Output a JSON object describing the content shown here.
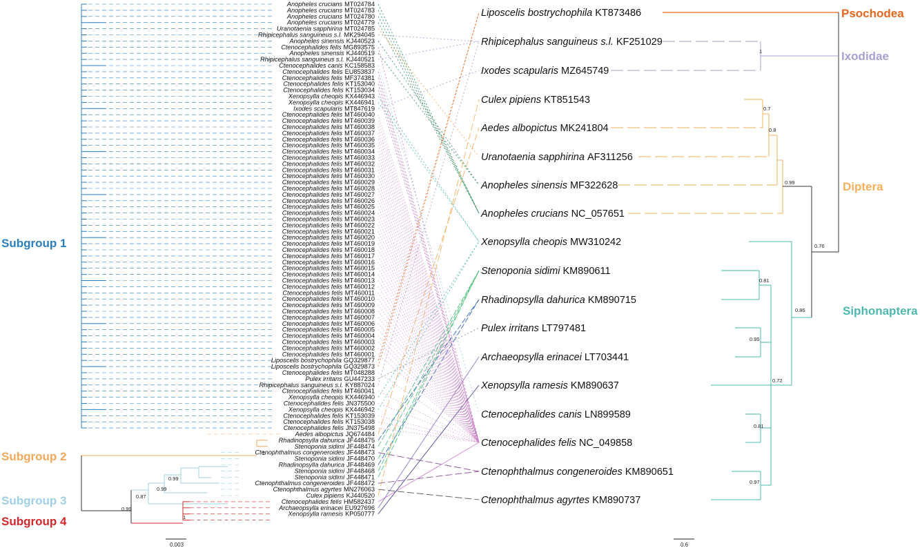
{
  "colors": {
    "subgroup1": "#2a7fc0",
    "subgroup2": "#f5a85a",
    "subgroup3": "#9fd0e6",
    "subgroup4": "#d7262b",
    "psochodea": "#e8661e",
    "ixodidae": "#a79fd0",
    "diptera": "#f5b05c",
    "siphonaptera": "#4db8ae"
  },
  "subgroups": [
    {
      "label": "Subgroup 1",
      "color": "#2a7fc0"
    },
    {
      "label": "Subgroup 2",
      "color": "#f5a85a"
    },
    {
      "label": "Subgroup 3",
      "color": "#9fd0e6"
    },
    {
      "label": "Subgroup 4",
      "color": "#d7262b"
    }
  ],
  "clades": [
    {
      "label": "Psochodea",
      "color": "#e8661e"
    },
    {
      "label": "Ixodidae",
      "color": "#a79fd0"
    },
    {
      "label": "Diptera",
      "color": "#f5b05c"
    },
    {
      "label": "Siphonaptera",
      "color": "#4db8ae"
    }
  ],
  "left_tips": [
    {
      "species": "Anopheles crucians",
      "accession": "MT024784"
    },
    {
      "species": "Anopheles crucians",
      "accession": "MT024783"
    },
    {
      "species": "Anopheles crucians",
      "accession": "MT024780"
    },
    {
      "species": "Anopheles crucians",
      "accession": "MT024779"
    },
    {
      "species": "Uranotaenia sapphirina",
      "accession": "MT024785"
    },
    {
      "species": "Rhipicephalus sanguineus s.l.",
      "accession": "MK294045"
    },
    {
      "species": "Anopheles sinensis",
      "accession": "KJ440523"
    },
    {
      "species": "Ctenocephalides felis",
      "accession": "MG893575"
    },
    {
      "species": "Anopheles sinensis",
      "accession": "KJ440519"
    },
    {
      "species": "Rhipicephalus sanguineus s.l.",
      "accession": "KJ440521"
    },
    {
      "species": "Ctenocephalides canis",
      "accession": "KC158583"
    },
    {
      "species": "Ctenocephalides felis",
      "accession": "EU853837"
    },
    {
      "species": "Ctenocephalides felis",
      "accession": "MF374381"
    },
    {
      "species": "Ctenocephalides felis",
      "accession": "KT153040"
    },
    {
      "species": "Ctenocephalides felis",
      "accession": "KT153034"
    },
    {
      "species": "Xenopsylla cheopis",
      "accession": "KX446943"
    },
    {
      "species": "Xenopsylla cheopis",
      "accession": "KX446941"
    },
    {
      "species": "Ixodes scapularis",
      "accession": "MT847619"
    },
    {
      "species": "Ctenocephalides felis",
      "accession": "MT460040"
    },
    {
      "species": "Ctenocephalides felis",
      "accession": "MT460039"
    },
    {
      "species": "Ctenocephalides felis",
      "accession": "MT460038"
    },
    {
      "species": "Ctenocephalides felis",
      "accession": "MT460037"
    },
    {
      "species": "Ctenocephalides felis",
      "accession": "MT460036"
    },
    {
      "species": "Ctenocephalides felis",
      "accession": "MT460035"
    },
    {
      "species": "Ctenocephalides felis",
      "accession": "MT460034"
    },
    {
      "species": "Ctenocephalides felis",
      "accession": "MT460033"
    },
    {
      "species": "Ctenocephalides felis",
      "accession": "MT460032"
    },
    {
      "species": "Ctenocephalides felis",
      "accession": "MT460031"
    },
    {
      "species": "Ctenocephalides felis",
      "accession": "MT460030"
    },
    {
      "species": "Ctenocephalides felis",
      "accession": "MT460029"
    },
    {
      "species": "Ctenocephalides felis",
      "accession": "MT460028"
    },
    {
      "species": "Ctenocephalides felis",
      "accession": "MT460027"
    },
    {
      "species": "Ctenocephalides felis",
      "accession": "MT460026"
    },
    {
      "species": "Ctenocephalides felis",
      "accession": "MT460025"
    },
    {
      "species": "Ctenocephalides felis",
      "accession": "MT460024"
    },
    {
      "species": "Ctenocephalides felis",
      "accession": "MT460023"
    },
    {
      "species": "Ctenocephalides felis",
      "accession": "MT460022"
    },
    {
      "species": "Ctenocephalides felis",
      "accession": "MT460021"
    },
    {
      "species": "Ctenocephalides felis",
      "accession": "MT460020"
    },
    {
      "species": "Ctenocephalides felis",
      "accession": "MT460019"
    },
    {
      "species": "Ctenocephalides felis",
      "accession": "MT460018"
    },
    {
      "species": "Ctenocephalides felis",
      "accession": "MT460017"
    },
    {
      "species": "Ctenocephalides felis",
      "accession": "MT460016"
    },
    {
      "species": "Ctenocephalides felis",
      "accession": "MT460015"
    },
    {
      "species": "Ctenocephalides felis",
      "accession": "MT460014"
    },
    {
      "species": "Ctenocephalides felis",
      "accession": "MT460013"
    },
    {
      "species": "Ctenocephalides felis",
      "accession": "MT460012"
    },
    {
      "species": "Ctenocephalides felis",
      "accession": "MT460011"
    },
    {
      "species": "Ctenocephalides felis",
      "accession": "MT460010"
    },
    {
      "species": "Ctenocephalides felis",
      "accession": "MT460009"
    },
    {
      "species": "Ctenocephalides felis",
      "accession": "MT460008"
    },
    {
      "species": "Ctenocephalides felis",
      "accession": "MT460007"
    },
    {
      "species": "Ctenocephalides felis",
      "accession": "MT460006"
    },
    {
      "species": "Ctenocephalides felis",
      "accession": "MT460005"
    },
    {
      "species": "Ctenocephalides felis",
      "accession": "MT460004"
    },
    {
      "species": "Ctenocephalides felis",
      "accession": "MT460003"
    },
    {
      "species": "Ctenocephalides felis",
      "accession": "MT460002"
    },
    {
      "species": "Ctenocephalides felis",
      "accession": "MT460001"
    },
    {
      "species": "Liposcelis bostrychophila",
      "accession": "GQ329877"
    },
    {
      "species": "Liposcelis bostrychophila",
      "accession": "GQ329873"
    },
    {
      "species": "Ctenocephalides felis",
      "accession": "MT048288"
    },
    {
      "species": "Pulex irritans",
      "accession": "GU447233"
    },
    {
      "species": "Rhipicephalus sanguineus s.l.",
      "accession": "KY887024"
    },
    {
      "species": "Ctenocephalides felis",
      "accession": "MT460041"
    },
    {
      "species": "Xenopsylla cheopis",
      "accession": "KX446940"
    },
    {
      "species": "Ctenocephalides felis",
      "accession": "JN375500"
    },
    {
      "species": "Xenopsylla cheopis",
      "accession": "KX446942"
    },
    {
      "species": "Ctenocephalides felis",
      "accession": "KT153039"
    },
    {
      "species": "Ctenocephalides felis",
      "accession": "KT153038"
    },
    {
      "species": "Ctenocephalides felis",
      "accession": "JN375498"
    },
    {
      "species": "Aedes albopictus",
      "accession": "JQ674484"
    },
    {
      "species": "Rhadinopsylla dahurica",
      "accession": "JF448475"
    },
    {
      "species": "Stenoponia sidimi",
      "accession": "JF448474"
    },
    {
      "species": "Ctenophthalmus congeneroides",
      "accession": "JF448473"
    },
    {
      "species": "Stenoponia sidimi",
      "accession": "JF448470"
    },
    {
      "species": "Rhadinopsylla dahurica",
      "accession": "JF448469"
    },
    {
      "species": "Stenoponia sidimi",
      "accession": "JF448468"
    },
    {
      "species": "Stenoponia sidimi",
      "accession": "JF448471"
    },
    {
      "species": "Ctenophthalmus congeneroides",
      "accession": "JF448472"
    },
    {
      "species": "Ctenophthalmus agyrtes",
      "accession": "MN276063"
    },
    {
      "species": "Culex pipiens",
      "accession": "KJ440520"
    },
    {
      "species": "Ctenocephalides felis",
      "accession": "HM582437"
    },
    {
      "species": "Archaeopsylla erinacei",
      "accession": "EU927696"
    },
    {
      "species": "Xenopsylla ramesis",
      "accession": "KP050777"
    }
  ],
  "right_tips": [
    {
      "species": "Liposcelis bostrychophila",
      "accession": "KT873486"
    },
    {
      "species": "Rhipicephalus sanguineus s.l.",
      "accession": "KF251029"
    },
    {
      "species": "Ixodes scapularis",
      "accession": "MZ645749"
    },
    {
      "species": "Culex pipiens",
      "accession": "KT851543"
    },
    {
      "species": "Aedes albopictus",
      "accession": "MK241804"
    },
    {
      "species": "Uranotaenia sapphirina",
      "accession": "AF311256"
    },
    {
      "species": "Anopheles sinensis",
      "accession": "MF322628"
    },
    {
      "species": "Anopheles crucians",
      "accession": "NC_057651"
    },
    {
      "species": "Xenopsylla cheopis",
      "accession": "MW310242"
    },
    {
      "species": "Stenoponia sidimi",
      "accession": "KM890611"
    },
    {
      "species": "Rhadinopsylla dahurica",
      "accession": "KM890715"
    },
    {
      "species": "Pulex irritans",
      "accession": "LT797481"
    },
    {
      "species": "Archaeopsylla erinacei",
      "accession": "LT703441"
    },
    {
      "species": "Xenopsylla ramesis",
      "accession": "KM890637"
    },
    {
      "species": "Ctenocephalides canis",
      "accession": "LN899589"
    },
    {
      "species": "Ctenocephalides felis",
      "accession": "NC_049858"
    },
    {
      "species": "Ctenophthalmus congeneroides",
      "accession": "KM890651"
    },
    {
      "species": "Ctenophthalmus agyrtes",
      "accession": "KM890737"
    }
  ],
  "left_support": [
    "0.99",
    "0.87",
    "0.99",
    "0.99",
    "1",
    "1"
  ],
  "right_support": [
    "1",
    "0.7",
    "0.8",
    "0.99",
    "0.76",
    "0.81",
    "0.86",
    "0.95",
    "0.72",
    "0.81",
    "0.97"
  ],
  "scale_bars": {
    "left": "0.003",
    "right": "0.6"
  }
}
